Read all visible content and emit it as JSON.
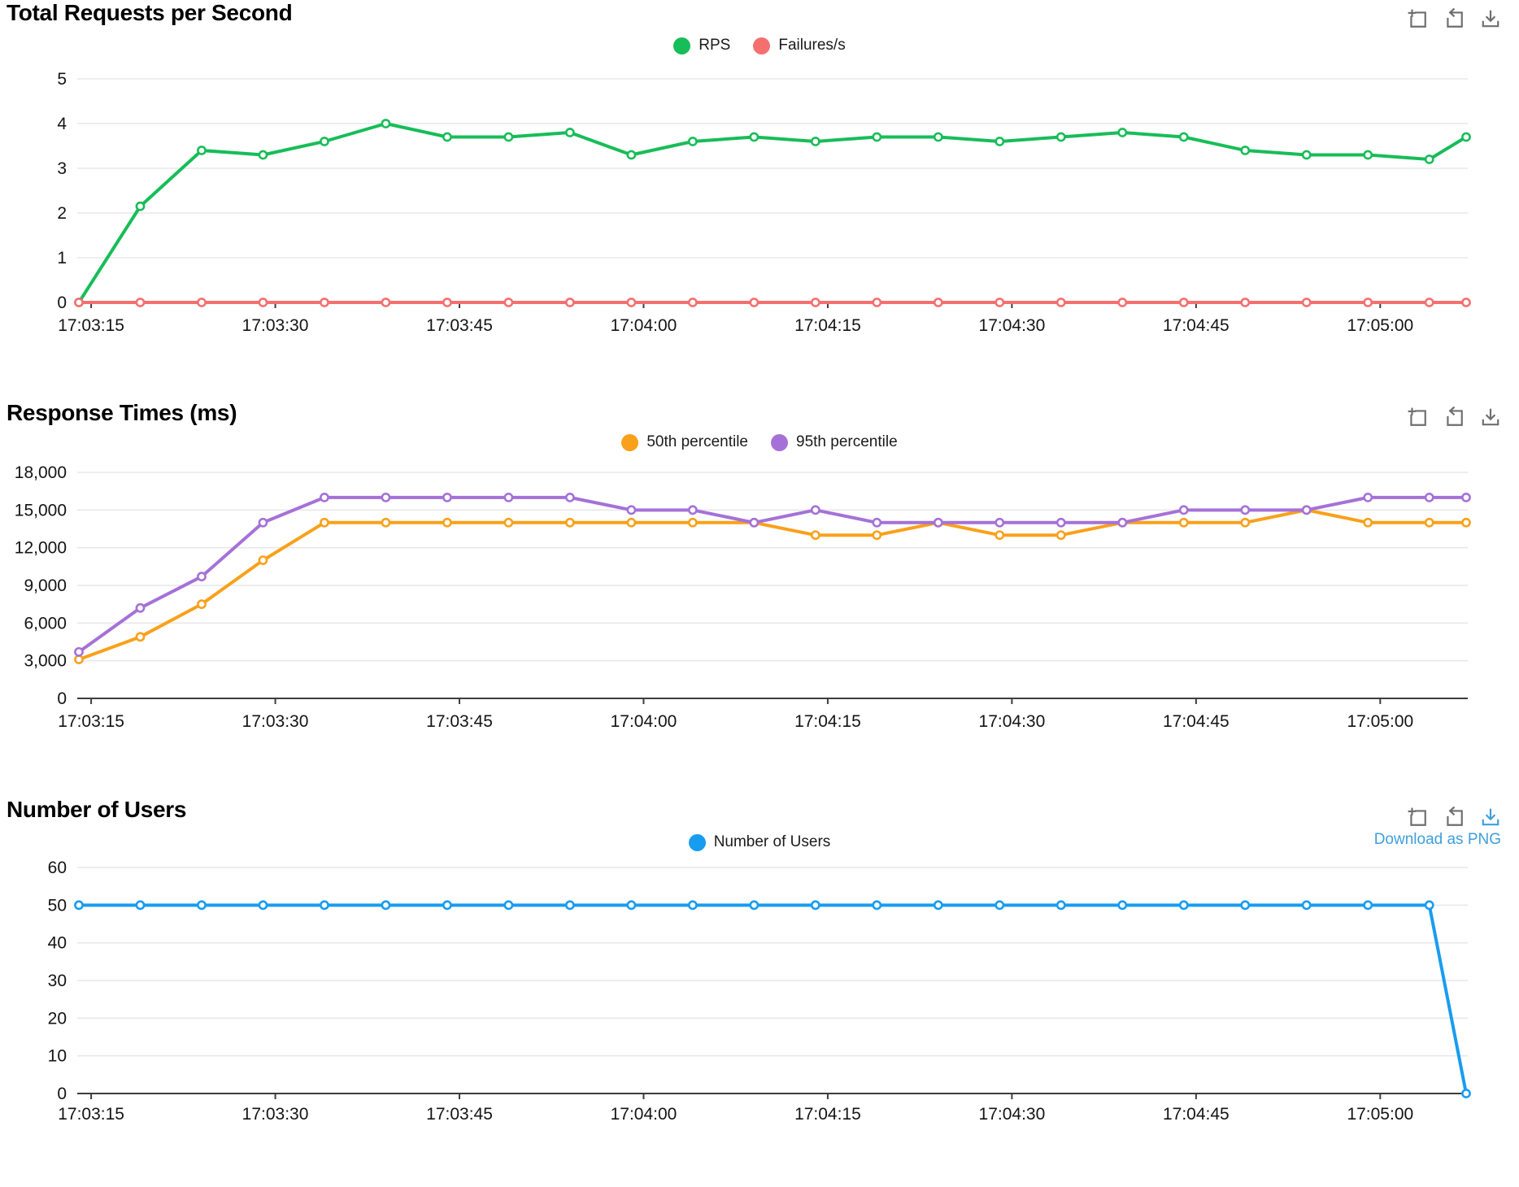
{
  "ui": {
    "toolbox": {
      "zoom_icon": "zoom-select-icon",
      "restore_icon": "restore-icon",
      "download_icon": "download-icon"
    },
    "download_link_label": "Download as PNG",
    "colors": {
      "icon_gray": "#6e6e6e",
      "link_blue": "#3E9FDB",
      "grid_line": "#e8e8e8",
      "axis_dark": "#3d3d3d",
      "tick_text": "#141414",
      "marker_fill": "#ffffff"
    }
  },
  "chart_data": [
    {
      "type": "line",
      "title": "Total Requests per Second",
      "grid": true,
      "legend_position": "top-center",
      "ylim": [
        0,
        5
      ],
      "y_ticks": [
        0,
        1,
        2,
        3,
        4,
        5
      ],
      "y_tick_labels": [
        "0",
        "1",
        "2",
        "3",
        "4",
        "5"
      ],
      "x_tick_labels": [
        "17:03:15",
        "17:03:30",
        "17:03:45",
        "17:04:00",
        "17:04:15",
        "17:04:30",
        "17:04:45",
        "17:05:00"
      ],
      "x_tick_offsets_s": [
        1,
        16,
        31,
        46,
        61,
        76,
        91,
        106
      ],
      "x_offsets_s": [
        0,
        5,
        10,
        15,
        20,
        25,
        30,
        35,
        40,
        45,
        50,
        55,
        60,
        65,
        70,
        75,
        80,
        85,
        90,
        95,
        100,
        105,
        110,
        113
      ],
      "x_span_s": 113,
      "series": [
        {
          "name": "RPS",
          "color": "#17BD58",
          "values": [
            0,
            2.15,
            3.4,
            3.3,
            3.6,
            4,
            3.7,
            3.7,
            3.8,
            3.3,
            3.6,
            3.7,
            3.6,
            3.7,
            3.7,
            3.6,
            3.7,
            3.8,
            3.7,
            3.4,
            3.3,
            3.3,
            3.2,
            3.7
          ]
        },
        {
          "name": "Failures/s",
          "color": "#F56F6F",
          "values": [
            0,
            0,
            0,
            0,
            0,
            0,
            0,
            0,
            0,
            0,
            0,
            0,
            0,
            0,
            0,
            0,
            0,
            0,
            0,
            0,
            0,
            0,
            0,
            0
          ]
        }
      ]
    },
    {
      "type": "line",
      "title": "Response Times (ms)",
      "grid": true,
      "legend_position": "top-center",
      "ylim": [
        0,
        18000
      ],
      "y_ticks": [
        0,
        3000,
        6000,
        9000,
        12000,
        15000,
        18000
      ],
      "y_tick_labels": [
        "0",
        "3,000",
        "6,000",
        "9,000",
        "12,000",
        "15,000",
        "18,000"
      ],
      "x_tick_labels": [
        "17:03:15",
        "17:03:30",
        "17:03:45",
        "17:04:00",
        "17:04:15",
        "17:04:30",
        "17:04:45",
        "17:05:00"
      ],
      "x_tick_offsets_s": [
        1,
        16,
        31,
        46,
        61,
        76,
        91,
        106
      ],
      "x_offsets_s": [
        0,
        5,
        10,
        15,
        20,
        25,
        30,
        35,
        40,
        45,
        50,
        55,
        60,
        65,
        70,
        75,
        80,
        85,
        90,
        95,
        100,
        105,
        110,
        113
      ],
      "x_span_s": 113,
      "series": [
        {
          "name": "50th percentile",
          "color": "#F9A11B",
          "values": [
            3100,
            4900,
            7500,
            11000,
            14000,
            14000,
            14000,
            14000,
            14000,
            14000,
            14000,
            14000,
            13000,
            13000,
            14000,
            13000,
            13000,
            14000,
            14000,
            14000,
            15000,
            14000,
            14000,
            14000
          ]
        },
        {
          "name": "95th percentile",
          "color": "#A571D8",
          "values": [
            3700,
            7200,
            9700,
            14000,
            16000,
            16000,
            16000,
            16000,
            16000,
            15000,
            15000,
            14000,
            15000,
            14000,
            14000,
            14000,
            14000,
            14000,
            15000,
            15000,
            15000,
            16000,
            16000,
            16000
          ]
        }
      ]
    },
    {
      "type": "line",
      "title": "Number of Users",
      "grid": true,
      "legend_position": "top-center",
      "ylim": [
        0,
        60
      ],
      "y_ticks": [
        0,
        10,
        20,
        30,
        40,
        50,
        60
      ],
      "y_tick_labels": [
        "0",
        "10",
        "20",
        "30",
        "40",
        "50",
        "60"
      ],
      "x_tick_labels": [
        "17:03:15",
        "17:03:30",
        "17:03:45",
        "17:04:00",
        "17:04:15",
        "17:04:30",
        "17:04:45",
        "17:05:00"
      ],
      "x_tick_offsets_s": [
        1,
        16,
        31,
        46,
        61,
        76,
        91,
        106
      ],
      "x_offsets_s": [
        0,
        5,
        10,
        15,
        20,
        25,
        30,
        35,
        40,
        45,
        50,
        55,
        60,
        65,
        70,
        75,
        80,
        85,
        90,
        95,
        100,
        105,
        110,
        113
      ],
      "x_span_s": 113,
      "series": [
        {
          "name": "Number of Users",
          "color": "#189CF0",
          "values": [
            50,
            50,
            50,
            50,
            50,
            50,
            50,
            50,
            50,
            50,
            50,
            50,
            50,
            50,
            50,
            50,
            50,
            50,
            50,
            50,
            50,
            50,
            50,
            0
          ]
        }
      ]
    }
  ]
}
